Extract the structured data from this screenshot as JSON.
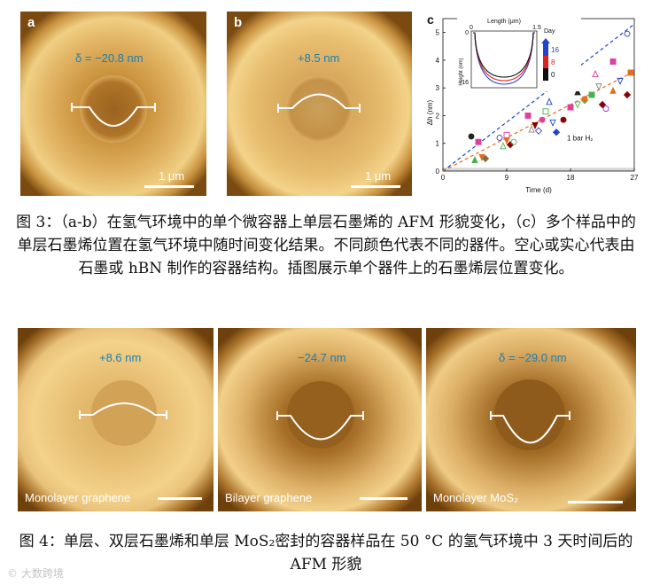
{
  "panels_top": [
    {
      "letter": "a",
      "delta": "δ = −20.8 nm",
      "scale": "1 μm"
    },
    {
      "letter": "b",
      "delta": "+8.5 nm",
      "scale": "1 μm"
    }
  ],
  "chart_panel_letter": "c",
  "figure3_caption": "图 3：（a-b）在氢气环境中的单个微容器上单层石墨烯的 AFM 形貌变化，（c）多个样品中的单层石墨烯位置在氢气环境中随时间变化结果。不同颜色代表不同的器件。空心或实心代表由石墨或 hBN 制作的容器结构。插图展示单个器件上的石墨烯层位置变化。",
  "panels_bottom": [
    {
      "delta": "+8.6 nm",
      "label": "Monolayer graphene"
    },
    {
      "delta": "−24.7 nm",
      "label": "Bilayer graphene"
    },
    {
      "delta": "δ = −29.0 nm",
      "label": "Monolayer MoS₂"
    }
  ],
  "figure4_caption": "图 4：单层、双层石墨烯和单层 MoS₂密封的容器样品在 50 °C 的氢气环境中 3 天时间后的 AFM 形貌",
  "watermark": "© 大数跨境",
  "chart_data": {
    "type": "scatter",
    "xlabel": "Time (d)",
    "ylabel": "Δh (nm)",
    "xticks": [
      "0",
      "9",
      "18",
      "27"
    ],
    "yticks": [
      "0",
      "1",
      "2",
      "3",
      "4",
      "5"
    ],
    "xlim": [
      0,
      27
    ],
    "ylim": [
      0,
      5.5
    ],
    "annotation": "1 bar H₂",
    "fits": [
      {
        "name": "blue fit",
        "color": "#2244cc",
        "x": [
          0,
          27
        ],
        "y": [
          0,
          5.3
        ]
      },
      {
        "name": "orange fit",
        "color": "#e07020",
        "x": [
          0,
          27
        ],
        "y": [
          0,
          3.6
        ]
      }
    ],
    "points": [
      {
        "x": 4,
        "y": 1.25,
        "color": "#222222",
        "filled": true
      },
      {
        "x": 5,
        "y": 1.05,
        "color": "#e0409a",
        "filled": true
      },
      {
        "x": 4.5,
        "y": 0.4,
        "color": "#4caf50",
        "filled": true
      },
      {
        "x": 5.5,
        "y": 0.5,
        "color": "#e07020",
        "filled": true
      },
      {
        "x": 6,
        "y": 0.45,
        "color": "#8a6d3b",
        "filled": true
      },
      {
        "x": 8,
        "y": 1.2,
        "color": "#2244cc",
        "filled": false
      },
      {
        "x": 9,
        "y": 1.3,
        "color": "#e0409a",
        "filled": false
      },
      {
        "x": 8.5,
        "y": 0.9,
        "color": "#4caf50",
        "filled": false
      },
      {
        "x": 9,
        "y": 1.1,
        "color": "#e07020",
        "filled": true
      },
      {
        "x": 9.5,
        "y": 0.95,
        "color": "#8b0000",
        "filled": true
      },
      {
        "x": 10,
        "y": 1.05,
        "color": "#4caf50",
        "filled": false
      },
      {
        "x": 12,
        "y": 2.0,
        "color": "#e0409a",
        "filled": true
      },
      {
        "x": 12.5,
        "y": 1.5,
        "color": "#888888",
        "filled": false
      },
      {
        "x": 13,
        "y": 1.65,
        "color": "#8b0000",
        "filled": true
      },
      {
        "x": 13.5,
        "y": 1.45,
        "color": "#2244cc",
        "filled": false
      },
      {
        "x": 14,
        "y": 1.85,
        "color": "#e0409a",
        "filled": true
      },
      {
        "x": 14.5,
        "y": 2.15,
        "color": "#4caf50",
        "filled": false
      },
      {
        "x": 15,
        "y": 2.5,
        "color": "#2244cc",
        "filled": false
      },
      {
        "x": 15.5,
        "y": 1.75,
        "color": "#2244cc",
        "filled": false
      },
      {
        "x": 16,
        "y": 1.4,
        "color": "#2244cc",
        "filled": true
      },
      {
        "x": 17,
        "y": 1.85,
        "color": "#8b0000",
        "filled": true
      },
      {
        "x": 18,
        "y": 2.3,
        "color": "#e0409a",
        "filled": true
      },
      {
        "x": 19,
        "y": 2.85,
        "color": "#222222",
        "filled": true
      },
      {
        "x": 19,
        "y": 2.4,
        "color": "#4caf50",
        "filled": false
      },
      {
        "x": 20,
        "y": 2.55,
        "color": "#4caf50",
        "filled": true
      },
      {
        "x": 20,
        "y": 2.6,
        "color": "#e07020",
        "filled": true
      },
      {
        "x": 21,
        "y": 2.75,
        "color": "#4caf50",
        "filled": true
      },
      {
        "x": 21.5,
        "y": 3.5,
        "color": "#e0409a",
        "filled": false
      },
      {
        "x": 22,
        "y": 3.05,
        "color": "#888888",
        "filled": false
      },
      {
        "x": 22.5,
        "y": 2.4,
        "color": "#8b0000",
        "filled": true
      },
      {
        "x": 23,
        "y": 2.25,
        "color": "#8a2be2",
        "filled": false
      },
      {
        "x": 24,
        "y": 3.95,
        "color": "#e0409a",
        "filled": true
      },
      {
        "x": 24,
        "y": 2.9,
        "color": "#e07020",
        "filled": true
      },
      {
        "x": 25,
        "y": 3.25,
        "color": "#2244cc",
        "filled": false
      },
      {
        "x": 26,
        "y": 2.75,
        "color": "#8b0000",
        "filled": true
      },
      {
        "x": 26,
        "y": 4.95,
        "color": "#2244cc",
        "filled": false
      },
      {
        "x": 26.5,
        "y": 3.55,
        "color": "#e07020",
        "filled": true
      }
    ],
    "inset": {
      "xlabel": "Length (μm)",
      "ylabel": "Height (nm)",
      "xticks": [
        "0",
        "1.5"
      ],
      "yticks": [
        "0",
        "−16"
      ],
      "legend_title": "Day",
      "legend": [
        {
          "label": "16",
          "color": "#2244cc"
        },
        {
          "label": "8",
          "color": "#e02020"
        },
        {
          "label": "0",
          "color": "#111111"
        }
      ]
    }
  }
}
